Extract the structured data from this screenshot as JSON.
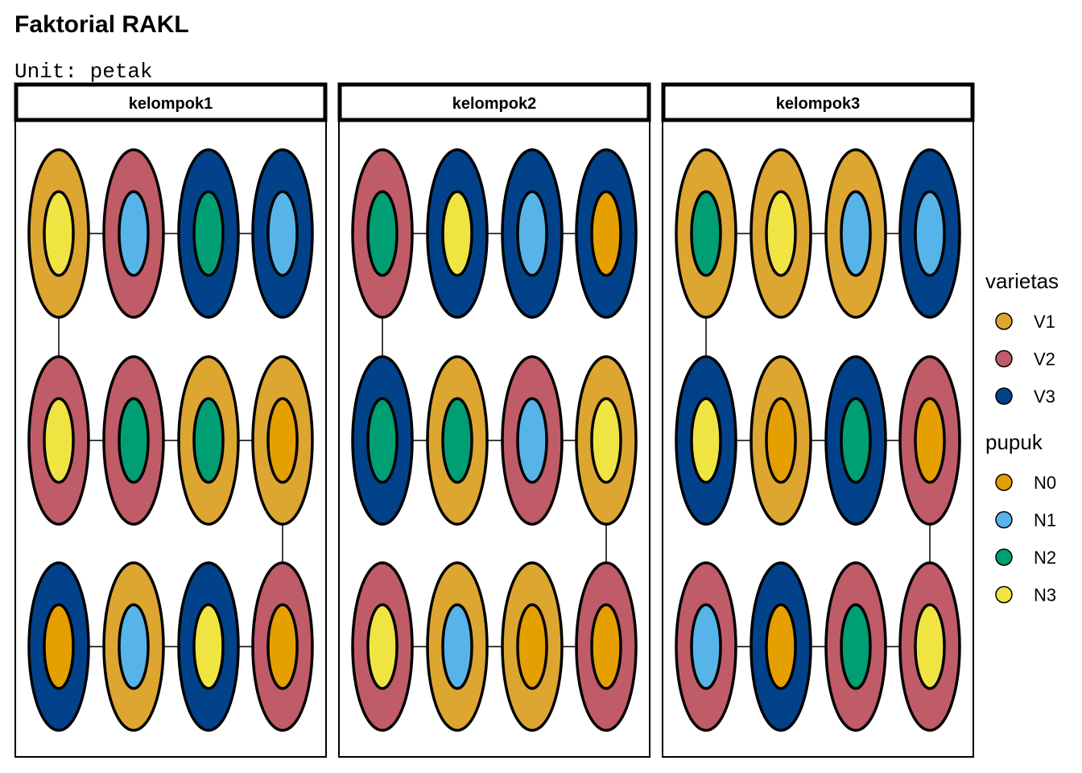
{
  "title": "Faktorial RAKL",
  "subtitle": "Unit: petak",
  "legend": {
    "varietas": {
      "title": "varietas",
      "items": [
        {
          "label": "V1",
          "color": "#DDA631"
        },
        {
          "label": "V2",
          "color": "#C05B68"
        },
        {
          "label": "V3",
          "color": "#01428A"
        }
      ]
    },
    "pupuk": {
      "title": "pupuk",
      "items": [
        {
          "label": "N0",
          "color": "#E69F00"
        },
        {
          "label": "N1",
          "color": "#56B4E9"
        },
        {
          "label": "N2",
          "color": "#009E73"
        },
        {
          "label": "N3",
          "color": "#F0E442"
        }
      ]
    }
  },
  "blocks": [
    {
      "label": "kelompok1",
      "rows": [
        [
          [
            "V1",
            "N3"
          ],
          [
            "V2",
            "N1"
          ],
          [
            "V3",
            "N2"
          ],
          [
            "V3",
            "N1"
          ]
        ],
        [
          [
            "V2",
            "N3"
          ],
          [
            "V2",
            "N2"
          ],
          [
            "V1",
            "N2"
          ],
          [
            "V1",
            "N0"
          ]
        ],
        [
          [
            "V3",
            "N0"
          ],
          [
            "V1",
            "N1"
          ],
          [
            "V3",
            "N3"
          ],
          [
            "V2",
            "N0"
          ]
        ]
      ]
    },
    {
      "label": "kelompok2",
      "rows": [
        [
          [
            "V2",
            "N2"
          ],
          [
            "V3",
            "N3"
          ],
          [
            "V3",
            "N1"
          ],
          [
            "V3",
            "N0"
          ]
        ],
        [
          [
            "V3",
            "N2"
          ],
          [
            "V1",
            "N2"
          ],
          [
            "V2",
            "N1"
          ],
          [
            "V1",
            "N3"
          ]
        ],
        [
          [
            "V2",
            "N3"
          ],
          [
            "V1",
            "N1"
          ],
          [
            "V1",
            "N0"
          ],
          [
            "V2",
            "N0"
          ]
        ]
      ]
    },
    {
      "label": "kelompok3",
      "rows": [
        [
          [
            "V1",
            "N2"
          ],
          [
            "V1",
            "N3"
          ],
          [
            "V1",
            "N1"
          ],
          [
            "V3",
            "N1"
          ]
        ],
        [
          [
            "V3",
            "N3"
          ],
          [
            "V1",
            "N0"
          ],
          [
            "V3",
            "N2"
          ],
          [
            "V2",
            "N0"
          ]
        ],
        [
          [
            "V2",
            "N1"
          ],
          [
            "V3",
            "N0"
          ],
          [
            "V2",
            "N2"
          ],
          [
            "V2",
            "N3"
          ]
        ]
      ]
    }
  ]
}
